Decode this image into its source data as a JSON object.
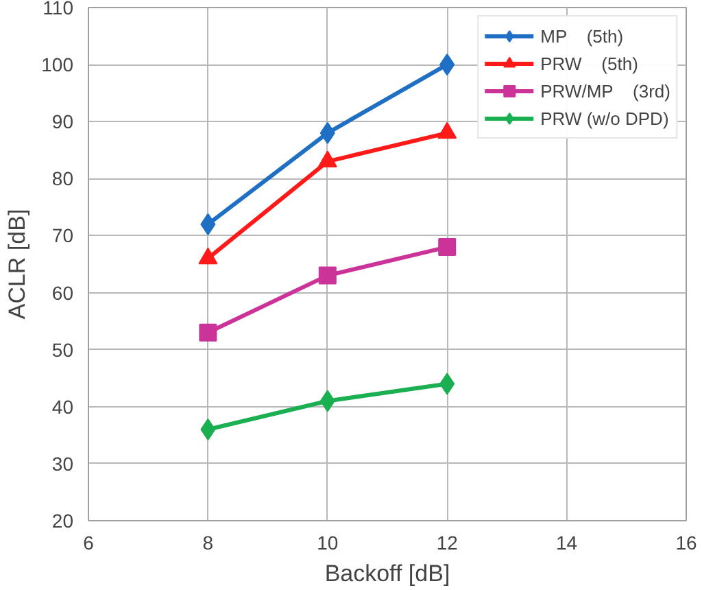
{
  "chart_data": {
    "type": "line",
    "xlabel": "Backoff [dB]",
    "ylabel": "ACLR [dB]",
    "x": [
      8,
      10,
      12
    ],
    "series": [
      {
        "name": "MP    (5th)",
        "color": "#1f6fc4",
        "marker": "diamond",
        "values": [
          72,
          88,
          100
        ]
      },
      {
        "name": "PRW    (5th)",
        "color": "#ff1a1a",
        "marker": "triangle",
        "values": [
          66,
          83,
          88
        ]
      },
      {
        "name": "PRW/MP    (3rd)",
        "color": "#cc3399",
        "marker": "square",
        "values": [
          53,
          63,
          68
        ]
      },
      {
        "name": "PRW (w/o DPD)",
        "color": "#1aaf50",
        "marker": "diamond",
        "values": [
          36,
          41,
          44
        ]
      }
    ],
    "xlim": [
      6,
      16
    ],
    "xticks": [
      6,
      8,
      10,
      12,
      14,
      16
    ],
    "ylim": [
      20,
      110
    ],
    "yticks": [
      20,
      30,
      40,
      50,
      60,
      70,
      80,
      90,
      100,
      110
    ],
    "grid": true,
    "legend": "top right",
    "line_style": "solid"
  }
}
